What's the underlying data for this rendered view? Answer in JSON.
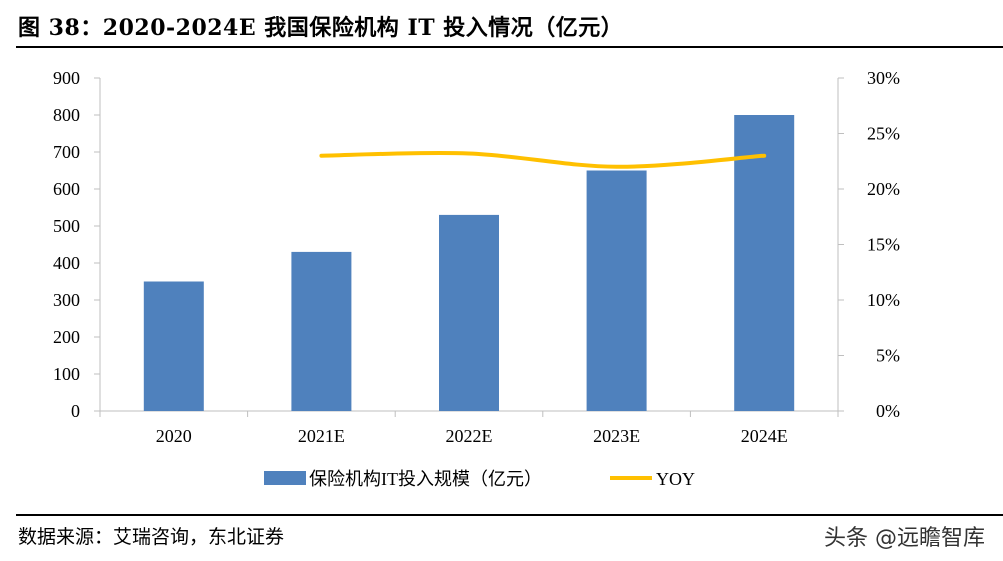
{
  "figure": {
    "title": "图 38：2020-2024E 我国保险机构 IT 投入情况（亿元）",
    "source": "数据来源：艾瑞咨询，东北证券",
    "watermark": "头条 @远瞻智库"
  },
  "colors": {
    "bar": "#4f81bd",
    "line": "#ffc000",
    "axis": "#bfbfbf"
  },
  "chart_data": {
    "type": "bar",
    "categories": [
      "2020",
      "2021E",
      "2022E",
      "2023E",
      "2024E"
    ],
    "ylim": [
      0,
      900
    ],
    "y_ticks": [
      0,
      100,
      200,
      300,
      400,
      500,
      600,
      700,
      800,
      900
    ],
    "y2lim": [
      0,
      30
    ],
    "y2_ticks": [
      "0%",
      "5%",
      "10%",
      "15%",
      "20%",
      "25%",
      "30%"
    ],
    "y2_tick_values": [
      0,
      5,
      10,
      15,
      20,
      25,
      30
    ],
    "grid": false,
    "legend_position": "bottom",
    "series": [
      {
        "name": "保险机构IT投入规模（亿元）",
        "type": "bar",
        "axis": "left",
        "values": [
          350,
          430,
          530,
          650,
          800
        ]
      },
      {
        "name": "YOY",
        "type": "line",
        "axis": "right",
        "smooth": true,
        "values": [
          null,
          23,
          23.2,
          22,
          23
        ]
      }
    ]
  }
}
